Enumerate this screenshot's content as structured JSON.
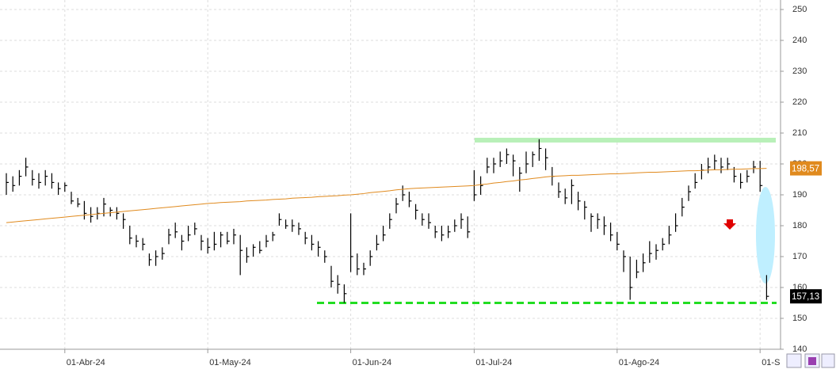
{
  "chart_data": {
    "type": "ohlc",
    "categories": [
      null,
      null,
      null,
      null,
      null,
      null,
      null,
      null,
      null,
      "01-Abr-24",
      null,
      null,
      null,
      null,
      null,
      null,
      null,
      null,
      null,
      null,
      null,
      null,
      null,
      null,
      null,
      null,
      null,
      null,
      null,
      null,
      null,
      "01-May-24",
      null,
      null,
      null,
      null,
      null,
      null,
      null,
      null,
      null,
      null,
      null,
      null,
      null,
      null,
      null,
      null,
      null,
      null,
      null,
      null,
      null,
      "01-Jun-24",
      null,
      null,
      null,
      null,
      null,
      null,
      null,
      null,
      null,
      null,
      null,
      null,
      null,
      null,
      null,
      null,
      null,
      null,
      "01-Jul-24",
      null,
      null,
      null,
      null,
      null,
      null,
      null,
      null,
      null,
      null,
      null,
      null,
      null,
      null,
      null,
      null,
      null,
      null,
      null,
      null,
      null,
      "01-Ago-24",
      null,
      null,
      null,
      null,
      null,
      null,
      null,
      null,
      null,
      null,
      null,
      null,
      null,
      null,
      null,
      null,
      null,
      null,
      null,
      null,
      null,
      "01-S",
      null
    ],
    "close": [
      194,
      193,
      196,
      199,
      195,
      194,
      196,
      194,
      192,
      193,
      188,
      187,
      184,
      183,
      184,
      187,
      185,
      184,
      182,
      176,
      175,
      174,
      169,
      170,
      171,
      177,
      178,
      175,
      177,
      179,
      175,
      173,
      174,
      177,
      175,
      177,
      172,
      170,
      173,
      172,
      175,
      177,
      182,
      180,
      180,
      179,
      176,
      174,
      173,
      170,
      162,
      161,
      158,
      170,
      166,
      166,
      170,
      174,
      177,
      182,
      187,
      190,
      188,
      185,
      182,
      181,
      178,
      177,
      178,
      180,
      182,
      178,
      190,
      193,
      199,
      200,
      201,
      203,
      201,
      197,
      200,
      203,
      205,
      202,
      196,
      191,
      189,
      193,
      188,
      186,
      183,
      182,
      180,
      177,
      174,
      170,
      160,
      165,
      168,
      171,
      172,
      174,
      177,
      180,
      186,
      191,
      194,
      198,
      199,
      201,
      199,
      200,
      196,
      194,
      196,
      199,
      193,
      157.13
    ],
    "high": [
      197,
      196,
      198,
      202,
      198,
      197,
      198,
      197,
      194,
      194,
      191,
      189,
      188,
      186,
      186,
      189,
      186,
      186,
      184,
      180,
      177,
      176,
      171,
      172,
      173,
      179,
      181,
      177,
      180,
      181,
      177,
      176,
      178,
      178,
      178,
      179,
      177,
      173,
      174,
      175,
      177,
      178,
      184,
      182,
      182,
      181,
      178,
      177,
      175,
      172,
      167,
      164,
      161,
      184,
      171,
      168,
      172,
      177,
      180,
      184,
      189,
      193,
      191,
      187,
      184,
      184,
      180,
      180,
      180,
      182,
      184,
      183,
      198,
      196,
      202,
      202,
      204,
      205,
      203,
      199,
      204,
      204,
      208,
      205,
      199,
      194,
      192,
      195,
      191,
      188,
      184,
      184,
      183,
      181,
      178,
      172,
      170,
      169,
      171,
      175,
      174,
      176,
      180,
      184,
      189,
      193,
      197,
      200,
      202,
      203,
      202,
      202,
      199,
      197,
      198,
      201,
      201,
      164
    ],
    "low": [
      190,
      191,
      193,
      196,
      193,
      192,
      193,
      192,
      190,
      191,
      187,
      186,
      182,
      181,
      182,
      183,
      183,
      182,
      179,
      174,
      173,
      172,
      167,
      167,
      169,
      174,
      176,
      172,
      175,
      177,
      172,
      171,
      172,
      173,
      174,
      174,
      164,
      168,
      170,
      171,
      173,
      175,
      180,
      179,
      178,
      177,
      174,
      172,
      170,
      168,
      160,
      158,
      155,
      165,
      164,
      164,
      167,
      172,
      175,
      179,
      184,
      188,
      186,
      182,
      180,
      179,
      176,
      175,
      176,
      178,
      179,
      176,
      188,
      190,
      197,
      197,
      199,
      200,
      196,
      191,
      197,
      199,
      201,
      198,
      193,
      189,
      187,
      187,
      185,
      182,
      178,
      179,
      177,
      175,
      172,
      165,
      156,
      163,
      165,
      168,
      169,
      172,
      174,
      178,
      183,
      188,
      192,
      195,
      197,
      198,
      197,
      198,
      194,
      192,
      194,
      197,
      191,
      156
    ],
    "ma": {
      "color": "#e08a1e",
      "values": [
        181.0,
        181.2,
        181.4,
        181.6,
        181.8,
        182.0,
        182.2,
        182.4,
        182.6,
        182.8,
        183.0,
        183.2,
        183.4,
        183.6,
        183.8,
        184.0,
        184.2,
        184.4,
        184.6,
        184.8,
        185.0,
        185.2,
        185.4,
        185.6,
        185.8,
        186.0,
        186.2,
        186.4,
        186.6,
        186.8,
        187.0,
        187.2,
        187.3,
        187.5,
        187.6,
        187.7,
        187.8,
        188.0,
        188.1,
        188.2,
        188.3,
        188.5,
        188.6,
        188.7,
        188.9,
        189.0,
        189.1,
        189.2,
        189.4,
        189.5,
        189.6,
        189.7,
        189.9,
        190.0,
        190.2,
        190.4,
        190.7,
        190.9,
        191.1,
        191.3,
        191.6,
        191.8,
        192.0,
        192.1,
        192.2,
        192.3,
        192.4,
        192.5,
        192.6,
        192.7,
        192.8,
        192.9,
        193.0,
        193.3,
        193.5,
        193.8,
        194.0,
        194.3,
        194.5,
        194.8,
        195.0,
        195.3,
        195.5,
        195.8,
        196.0,
        196.1,
        196.2,
        196.3,
        196.3,
        196.4,
        196.5,
        196.6,
        196.7,
        196.8,
        196.8,
        196.9,
        197.0,
        197.1,
        197.2,
        197.3,
        197.3,
        197.4,
        197.5,
        197.6,
        197.7,
        197.8,
        197.8,
        197.9,
        198.0,
        198.1,
        198.1,
        198.2,
        198.3,
        198.3,
        198.4,
        198.5,
        198.5,
        198.57
      ],
      "last": {
        "value": 198.57,
        "label": "198,57"
      }
    },
    "last_price": {
      "value": 157.13,
      "label": "157,13"
    },
    "resistance_level": 207.7,
    "support_level": 155,
    "ylim": [
      140,
      250
    ],
    "yticks": [
      140,
      150,
      160,
      170,
      180,
      190,
      200,
      210,
      220,
      230,
      240,
      250
    ],
    "grid": true,
    "color": "#000000"
  }
}
